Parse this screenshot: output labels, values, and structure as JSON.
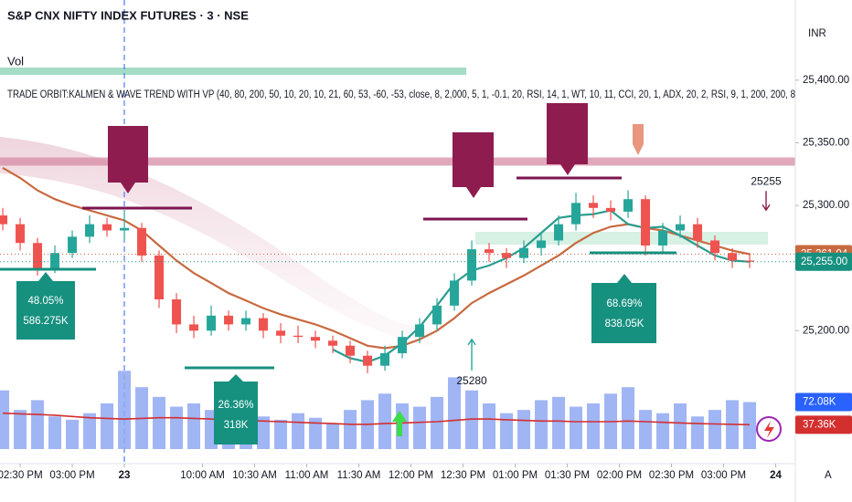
{
  "header": {
    "symbol": "S&P CNX NIFTY INDEX FUTURES · 3 · NSE",
    "volume_label": "Vol",
    "indicator": "TRADE ORBIT:KALMEN & WAVE TREND WITH VP (40, 80, 200, 50, 10, 20, 10, 21, 60, 53, -60, -53, close, 8, 2,000, 5, 1, -0.1, 20, RSI, 14, 1, WT, 10, 11, CCI, 20, 1, ADX, 20, 2, RSI, 9, 1, 200, 200, 8",
    "currency": "INR",
    "scale_mode": "A"
  },
  "annotations": [
    [
      "48.05%",
      "586.275K"
    ],
    [
      "26.36%",
      "318K"
    ],
    [
      "68.69%",
      "838.05K"
    ]
  ],
  "chart_data": {
    "type": "candlestick",
    "x": [
      0,
      1,
      2,
      3,
      4,
      5,
      6,
      7,
      8,
      9,
      10,
      11,
      12,
      13,
      14,
      15,
      16,
      17,
      18,
      19,
      20,
      21,
      22,
      23,
      24,
      25,
      26,
      27,
      28,
      29,
      30,
      31,
      32,
      33,
      34,
      35,
      36,
      37,
      38,
      39,
      40,
      41,
      42,
      43
    ],
    "ohlc": [
      [
        25292,
        25298,
        25280,
        25285
      ],
      [
        25285,
        25290,
        25264,
        25270
      ],
      [
        25270,
        25274,
        25244,
        25250
      ],
      [
        25250,
        25268,
        25246,
        25262
      ],
      [
        25262,
        25280,
        25258,
        25275
      ],
      [
        25275,
        25292,
        25270,
        25285
      ],
      [
        25285,
        25290,
        25275,
        25280
      ],
      [
        25280,
        25296,
        25272,
        25282
      ],
      [
        25282,
        25286,
        25255,
        25260
      ],
      [
        25260,
        25264,
        25218,
        25225
      ],
      [
        25225,
        25230,
        25198,
        25205
      ],
      [
        25205,
        25212,
        25194,
        25200
      ],
      [
        25200,
        25220,
        25196,
        25212
      ],
      [
        25212,
        25216,
        25200,
        25205
      ],
      [
        25205,
        25216,
        25200,
        25210
      ],
      [
        25210,
        25214,
        25194,
        25200
      ],
      [
        25200,
        25206,
        25190,
        25196
      ],
      [
        25196,
        25204,
        25190,
        25195
      ],
      [
        25195,
        25200,
        25186,
        25192
      ],
      [
        25192,
        25196,
        25182,
        25188
      ],
      [
        25188,
        25192,
        25174,
        25180
      ],
      [
        25180,
        25184,
        25166,
        25172
      ],
      [
        25172,
        25188,
        25168,
        25182
      ],
      [
        25182,
        25200,
        25178,
        25195
      ],
      [
        25195,
        25210,
        25190,
        25205
      ],
      [
        25205,
        25226,
        25200,
        25220
      ],
      [
        25220,
        25246,
        25216,
        25240
      ],
      [
        25240,
        25272,
        25236,
        25265
      ],
      [
        25265,
        25270,
        25255,
        25262
      ],
      [
        25262,
        25266,
        25250,
        25258
      ],
      [
        25258,
        25272,
        25254,
        25266
      ],
      [
        25266,
        25278,
        25260,
        25272
      ],
      [
        25272,
        25292,
        25268,
        25285
      ],
      [
        25285,
        25310,
        25280,
        25302
      ],
      [
        25302,
        25308,
        25290,
        25298
      ],
      [
        25298,
        25304,
        25288,
        25295
      ],
      [
        25295,
        25312,
        25290,
        25305
      ],
      [
        25305,
        25308,
        25260,
        25268
      ],
      [
        25268,
        25286,
        25262,
        25280
      ],
      [
        25280,
        25292,
        25274,
        25285
      ],
      [
        25285,
        25290,
        25266,
        25272
      ],
      [
        25272,
        25276,
        25256,
        25262
      ],
      [
        25262,
        25266,
        25250,
        25256
      ],
      [
        25256,
        25262,
        25250,
        25255
      ]
    ],
    "up_color": "#26a69a",
    "down_color": "#ef5350",
    "overlays": [
      {
        "color": "#c8693f",
        "values": [
          25330,
          25322,
          25312,
          25305,
          25300,
          25296,
          25292,
          25288,
          25280,
          25268,
          25256,
          25246,
          25238,
          25230,
          25224,
          25218,
          25213,
          25209,
          25205,
          25200,
          25194,
          25188,
          25186,
          25188,
          25193,
          25200,
          25210,
          25222,
          25230,
          25237,
          25244,
          25252,
          25260,
          25270,
          25278,
          25283,
          25285,
          25282,
          25280,
          25276,
          25272,
          25268,
          25264,
          25261.04
        ]
      },
      {
        "color": "#2a9d8f",
        "values": [
          null,
          null,
          null,
          null,
          null,
          null,
          null,
          null,
          null,
          null,
          null,
          null,
          null,
          null,
          null,
          null,
          null,
          null,
          null,
          25185,
          25178,
          25175,
          25180,
          25190,
          25203,
          25220,
          25238,
          25248,
          25252,
          25258,
          25266,
          25278,
          25290,
          25292,
          25293,
          25296,
          25285,
          25282,
          25283,
          25276,
          25268,
          25260,
          25256,
          25255
        ]
      }
    ],
    "levels": [
      {
        "value": 25335,
        "color": "#d88ca6"
      }
    ],
    "xlim": [
      -0.16,
      45.63
    ],
    "ylim": [
      25096,
      25464
    ],
    "yticks": [
      {
        "value": 25400,
        "label": "25,400.00"
      },
      {
        "value": 25350,
        "label": "25,350.00"
      },
      {
        "value": 25300,
        "label": "25,300.00"
      },
      {
        "value": 25200,
        "label": "25,200.00"
      }
    ],
    "xticks": [
      {
        "value": 1,
        "label": "02:30 PM"
      },
      {
        "value": 4,
        "label": "03:00 PM"
      },
      {
        "value": 7,
        "label": "23"
      },
      {
        "value": 11.5,
        "label": "10:00 AM"
      },
      {
        "value": 14.5,
        "label": "10:30 AM"
      },
      {
        "value": 17.5,
        "label": "11:00 AM"
      },
      {
        "value": 20.5,
        "label": "11:30 AM"
      },
      {
        "value": 23.5,
        "label": "12:00 PM"
      },
      {
        "value": 26.5,
        "label": "12:30 PM"
      },
      {
        "value": 29.5,
        "label": "01:00 PM"
      },
      {
        "value": 32.5,
        "label": "01:30 PM"
      },
      {
        "value": 35.5,
        "label": "02:00 PM"
      },
      {
        "value": 38.5,
        "label": "02:30 PM"
      },
      {
        "value": 41.5,
        "label": "03:00 PM"
      },
      {
        "value": 44.5,
        "label": "24"
      }
    ],
    "grid": false,
    "price_labels": [
      {
        "value": 25261.04,
        "label": "25,261.04",
        "color": "#c8693f"
      },
      {
        "value": 25255,
        "label": "25,255.00",
        "color": "#16907f"
      }
    ],
    "signals": [
      {
        "candle": 43,
        "value": 25255,
        "side": "above",
        "color": "#8e1c4f"
      },
      {
        "candle": 27,
        "value": 25280,
        "side": "below",
        "color": "#26a69a"
      }
    ],
    "volume": {
      "color": "#8fa8f2",
      "ma_color": "#d32f2f",
      "ylim": [
        0,
        140000
      ],
      "values": [
        90000,
        60000,
        75000,
        50000,
        45000,
        55000,
        70000,
        120000,
        95000,
        80000,
        65000,
        70000,
        60000,
        55000,
        75000,
        50000,
        45000,
        55000,
        48000,
        40000,
        60000,
        75000,
        85000,
        70000,
        65000,
        80000,
        110000,
        90000,
        70000,
        55000,
        60000,
        75000,
        80000,
        65000,
        70000,
        85000,
        95000,
        60000,
        55000,
        70000,
        50000,
        60000,
        75000,
        72080
      ],
      "ma": [
        55000,
        54000,
        53000,
        52000,
        50000,
        48000,
        47000,
        46000,
        47000,
        48000,
        48000,
        47000,
        46000,
        45000,
        44000,
        43000,
        42000,
        41000,
        40000,
        39000,
        38000,
        38000,
        39000,
        40000,
        41000,
        42000,
        44000,
        46000,
        46000,
        45000,
        44000,
        43000,
        43000,
        42000,
        42000,
        42000,
        43000,
        42000,
        41000,
        40000,
        39000,
        38500,
        38000,
        37360
      ],
      "labels": [
        {
          "value": 72080,
          "label": "72.08K",
          "color": "#2962ff"
        },
        {
          "value": 37360,
          "label": "37.36K",
          "color": "#d32f2f"
        }
      ]
    }
  }
}
